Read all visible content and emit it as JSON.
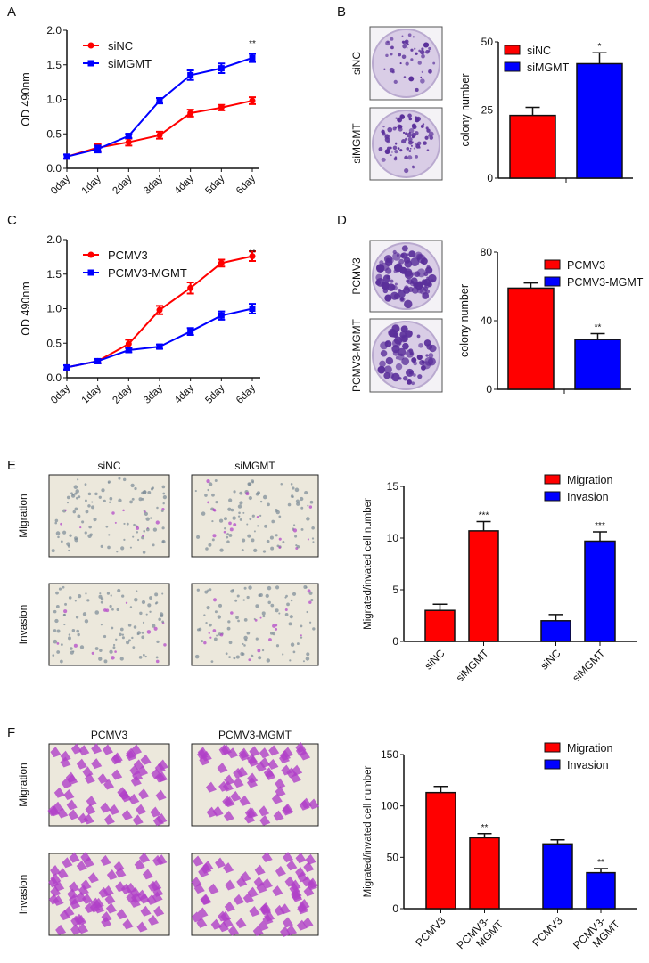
{
  "panel_labels": [
    "A",
    "B",
    "C",
    "D",
    "E",
    "F"
  ],
  "colors": {
    "red": "#ff0000",
    "blue": "#0000ff",
    "axis": "#111111",
    "plate": "#d9cde6",
    "stain": "#5a2f9a",
    "cell": "#b040c8",
    "field": "#ece8dc"
  },
  "photos": {
    "B": {
      "rows": [
        "siNC",
        "siMGMT"
      ]
    },
    "D": {
      "rows": [
        "PCMV3",
        "PCMV3-MGMT"
      ]
    },
    "E": {
      "columns": [
        "siNC",
        "siMGMT"
      ],
      "rows": [
        "Migration",
        "Invasion"
      ]
    },
    "F": {
      "columns": [
        "PCMV3",
        "PCMV3-MGMT"
      ],
      "rows": [
        "Migration",
        "Invasion"
      ]
    }
  },
  "chart_data": [
    {
      "panel": "A",
      "type": "line",
      "ylabel": "OD 490nm",
      "ylim": [
        0,
        2.0
      ],
      "yticks": [
        "0.0",
        "0.5",
        "1.0",
        "1.5",
        "2.0"
      ],
      "categories": [
        "0day",
        "1day",
        "2day",
        "3day",
        "4day",
        "5day",
        "6day"
      ],
      "series": [
        {
          "name": "siNC",
          "color": "#ff0000",
          "marker": "circle",
          "values": [
            0.17,
            0.3,
            0.38,
            0.48,
            0.8,
            0.88,
            0.98
          ],
          "errors": [
            0.03,
            0.05,
            0.05,
            0.05,
            0.05,
            0.04,
            0.05
          ]
        },
        {
          "name": "siMGMT",
          "color": "#0000ff",
          "marker": "square",
          "values": [
            0.17,
            0.28,
            0.47,
            0.98,
            1.35,
            1.45,
            1.6
          ],
          "errors": [
            0.03,
            0.05,
            0.03,
            0.04,
            0.07,
            0.07,
            0.06
          ]
        }
      ],
      "annotations": [
        {
          "category": "6day",
          "text": "**"
        }
      ],
      "legend": "top-left"
    },
    {
      "panel": "B",
      "type": "bar",
      "ylabel": "colony number",
      "ylim": [
        0,
        50
      ],
      "yticks": [
        "0",
        "25",
        "50"
      ],
      "categories": [
        "siNC",
        "siMGMT"
      ],
      "values": [
        23,
        42
      ],
      "errors": [
        3,
        4
      ],
      "colors": [
        "#ff0000",
        "#0000ff"
      ],
      "legend_entries": [
        "siNC",
        "siMGMT"
      ],
      "annotations": [
        "",
        "*"
      ],
      "legend": "top-left",
      "show_category_labels": false
    },
    {
      "panel": "C",
      "type": "line",
      "ylabel": "OD 490nm",
      "ylim": [
        0,
        2.0
      ],
      "yticks": [
        "0.0",
        "0.5",
        "1.0",
        "1.5",
        "2.0"
      ],
      "categories": [
        "0day",
        "1day",
        "2day",
        "3day",
        "4day",
        "5day",
        "6day"
      ],
      "series": [
        {
          "name": "PCMV3",
          "color": "#ff0000",
          "marker": "circle",
          "values": [
            0.15,
            0.24,
            0.49,
            0.98,
            1.3,
            1.66,
            1.76
          ],
          "errors": [
            0.03,
            0.03,
            0.06,
            0.06,
            0.08,
            0.05,
            0.07
          ]
        },
        {
          "name": "PCMV3-MGMT",
          "color": "#0000ff",
          "marker": "square",
          "values": [
            0.15,
            0.24,
            0.4,
            0.45,
            0.67,
            0.9,
            1.0
          ],
          "errors": [
            0.03,
            0.03,
            0.03,
            0.03,
            0.05,
            0.06,
            0.07
          ]
        }
      ],
      "annotations": [
        {
          "category": "6day",
          "text": "**"
        }
      ],
      "legend": "top-left"
    },
    {
      "panel": "D",
      "type": "bar",
      "ylabel": "colony number",
      "ylim": [
        0,
        80
      ],
      "yticks": [
        "0",
        "40",
        "80"
      ],
      "categories": [
        "PCMV3",
        "PCMV3-MGMT"
      ],
      "values": [
        59,
        29
      ],
      "errors": [
        3,
        3.5
      ],
      "colors": [
        "#ff0000",
        "#0000ff"
      ],
      "legend_entries": [
        "PCMV3",
        "PCMV3-MGMT"
      ],
      "annotations": [
        "",
        "**"
      ],
      "legend": "top-right",
      "show_category_labels": false
    },
    {
      "panel": "E",
      "type": "bar",
      "ylabel": "Migrated/invated cell number",
      "ylim": [
        0,
        15
      ],
      "yticks": [
        "0",
        "5",
        "10",
        "15"
      ],
      "categories": [
        "siNC",
        "siMGMT",
        "siNC",
        "siMGMT"
      ],
      "values": [
        3.0,
        10.7,
        2.0,
        9.7
      ],
      "errors": [
        0.6,
        0.9,
        0.6,
        0.9
      ],
      "colors": [
        "#ff0000",
        "#ff0000",
        "#0000ff",
        "#0000ff"
      ],
      "legend_entries": [
        "Migration",
        "Invasion"
      ],
      "annotations": [
        "",
        "***",
        "",
        "***"
      ],
      "legend": "top-right",
      "show_category_labels": true
    },
    {
      "panel": "F",
      "type": "bar",
      "ylabel": "Migrated/invated cell number",
      "ylim": [
        0,
        150
      ],
      "yticks": [
        "0",
        "50",
        "100",
        "150"
      ],
      "categories": [
        "PCMV3",
        "PCMV3-\nMGMT",
        "PCMV3",
        "PCMV3-\nMGMT"
      ],
      "values": [
        113,
        69,
        63,
        35
      ],
      "errors": [
        6,
        4,
        4,
        4
      ],
      "colors": [
        "#ff0000",
        "#ff0000",
        "#0000ff",
        "#0000ff"
      ],
      "legend_entries": [
        "Migration",
        "Invasion"
      ],
      "annotations": [
        "",
        "**",
        "",
        "**"
      ],
      "legend": "top-right",
      "show_category_labels": true
    }
  ]
}
